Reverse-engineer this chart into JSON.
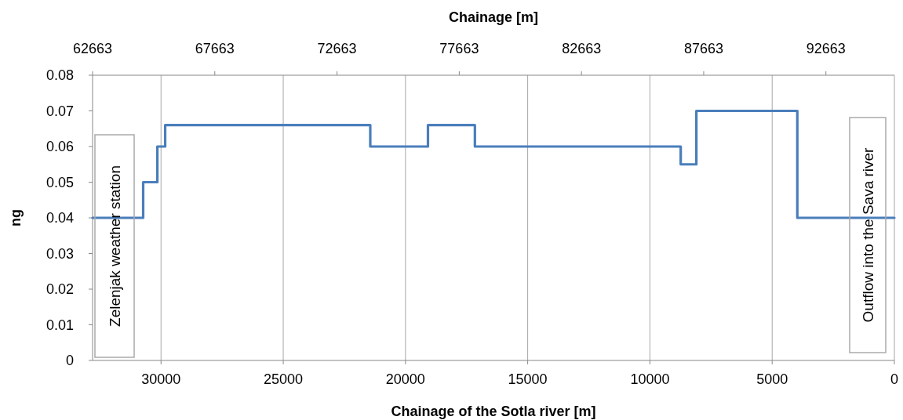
{
  "chart_data": {
    "type": "line",
    "xlabel": "Chainage of the Sotla river [m]",
    "x2label": "Chainage [m]",
    "ylabel": "ng",
    "xlim": [
      32800,
      0
    ],
    "xticks": [
      30000,
      25000,
      20000,
      15000,
      10000,
      5000,
      0
    ],
    "x2lim": [
      62663,
      95463
    ],
    "x2ticks": [
      62663,
      67663,
      72663,
      77663,
      82663,
      87663,
      92663
    ],
    "ylim": [
      0,
      0.08
    ],
    "yticks": [
      0,
      0.01,
      0.02,
      0.03,
      0.04,
      0.05,
      0.06,
      0.07,
      0.08
    ],
    "grid": "x",
    "marker": "none",
    "line_style": "solid",
    "annotations": [
      "Zelenjak weather station",
      "Outflow into the Sava river"
    ],
    "series": [
      {
        "color": "#4a7ebb",
        "x": [
          32800,
          30730,
          30730,
          30150,
          30150,
          29830,
          29830,
          21440,
          21440,
          19080,
          19080,
          17160,
          17160,
          8740,
          8740,
          8100,
          8100,
          3970,
          3970,
          0
        ],
        "values": [
          0.04,
          0.04,
          0.05,
          0.05,
          0.06,
          0.06,
          0.066,
          0.066,
          0.06,
          0.06,
          0.066,
          0.066,
          0.06,
          0.06,
          0.055,
          0.055,
          0.07,
          0.07,
          0.04,
          0.04
        ]
      }
    ]
  }
}
